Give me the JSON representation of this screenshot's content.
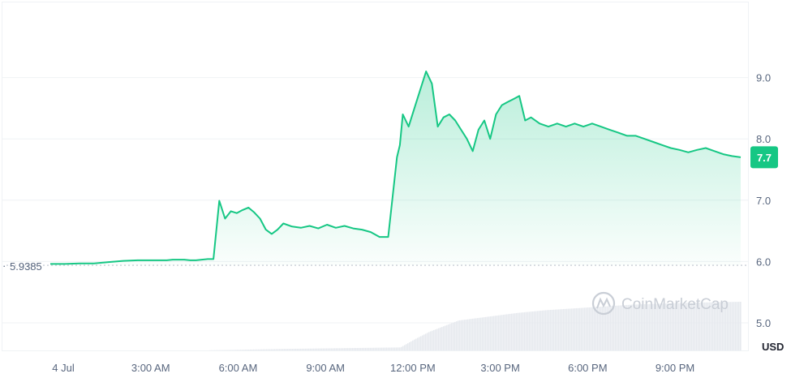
{
  "chart_data": {
    "type": "area",
    "x_ticks": [
      "4 Jul",
      "3:00 AM",
      "6:00 AM",
      "9:00 AM",
      "12:00 PM",
      "3:00 PM",
      "6:00 PM",
      "9:00 PM"
    ],
    "y_ticks": [
      "5.0",
      "6.0",
      "7.0",
      "8.0",
      "9.0"
    ],
    "ylim": [
      4.55,
      10.0
    ],
    "unit": "USD",
    "reference_value": 5.9385,
    "reference_label": "5.9385",
    "last_value_label": "7.7",
    "watermark": "CoinMarketCap",
    "grid": true,
    "series": [
      {
        "x": [
          0,
          0.5,
          1,
          1.5,
          2,
          2.5,
          3,
          3.5,
          4,
          4.2,
          4.4,
          4.6,
          4.8,
          5,
          5.2,
          5.4,
          5.6,
          5.8,
          6,
          6.2,
          6.4,
          6.6,
          6.8,
          7,
          7.2,
          7.4,
          7.6,
          7.8,
          8,
          8.3,
          8.6,
          8.9,
          9.2,
          9.5,
          9.8,
          10.1,
          10.4,
          10.7,
          11,
          11.3,
          11.6,
          11.9,
          12,
          12.1,
          12.3,
          12.5,
          12.7,
          12.9,
          13.1,
          13.3,
          13.5,
          13.7,
          13.9,
          14.1,
          14.3,
          14.5,
          14.7,
          14.9,
          15.1,
          15.3,
          15.5,
          15.7,
          15.9,
          16.1,
          16.3,
          16.5,
          16.8,
          17.1,
          17.4,
          17.7,
          18,
          18.3,
          18.6,
          18.9,
          19.2,
          19.5,
          19.8,
          20.1,
          20.4,
          20.7,
          21,
          21.3,
          21.6,
          21.9,
          22.2,
          22.5,
          22.8,
          23.1,
          23.4,
          23.7
        ],
        "values": [
          5.96,
          5.96,
          5.97,
          5.97,
          5.99,
          6.01,
          6.02,
          6.02,
          6.02,
          6.03,
          6.03,
          6.03,
          6.02,
          6.02,
          6.03,
          6.04,
          6.04,
          6.99,
          6.7,
          6.82,
          6.79,
          6.84,
          6.88,
          6.8,
          6.7,
          6.52,
          6.45,
          6.52,
          6.62,
          6.57,
          6.55,
          6.58,
          6.54,
          6.6,
          6.55,
          6.58,
          6.54,
          6.52,
          6.48,
          6.4,
          6.4,
          7.7,
          7.9,
          8.4,
          8.2,
          8.5,
          8.8,
          9.1,
          8.9,
          8.2,
          8.35,
          8.4,
          8.3,
          8.15,
          8.0,
          7.8,
          8.15,
          8.3,
          8.0,
          8.4,
          8.55,
          8.6,
          8.65,
          8.7,
          8.3,
          8.35,
          8.25,
          8.2,
          8.25,
          8.2,
          8.25,
          8.2,
          8.25,
          8.2,
          8.15,
          8.1,
          8.05,
          8.05,
          8.0,
          7.95,
          7.9,
          7.85,
          7.82,
          7.78,
          7.82,
          7.85,
          7.8,
          7.75,
          7.72,
          7.7
        ]
      }
    ],
    "volume": {
      "x": [
        0,
        1,
        2,
        3,
        4,
        5,
        6,
        7,
        8,
        9,
        10,
        11,
        12,
        12.5,
        13,
        13.5,
        14,
        15,
        16,
        17,
        18,
        19,
        20,
        21,
        22,
        23,
        23.7
      ],
      "values": [
        0,
        0,
        0,
        0,
        0,
        0,
        0.2,
        0.5,
        0.8,
        1,
        1.2,
        1.4,
        1.6,
        6,
        10,
        13,
        16,
        18,
        20,
        21.5,
        22.5,
        23.5,
        24.5,
        25,
        25.5,
        25.8,
        26
      ]
    }
  }
}
